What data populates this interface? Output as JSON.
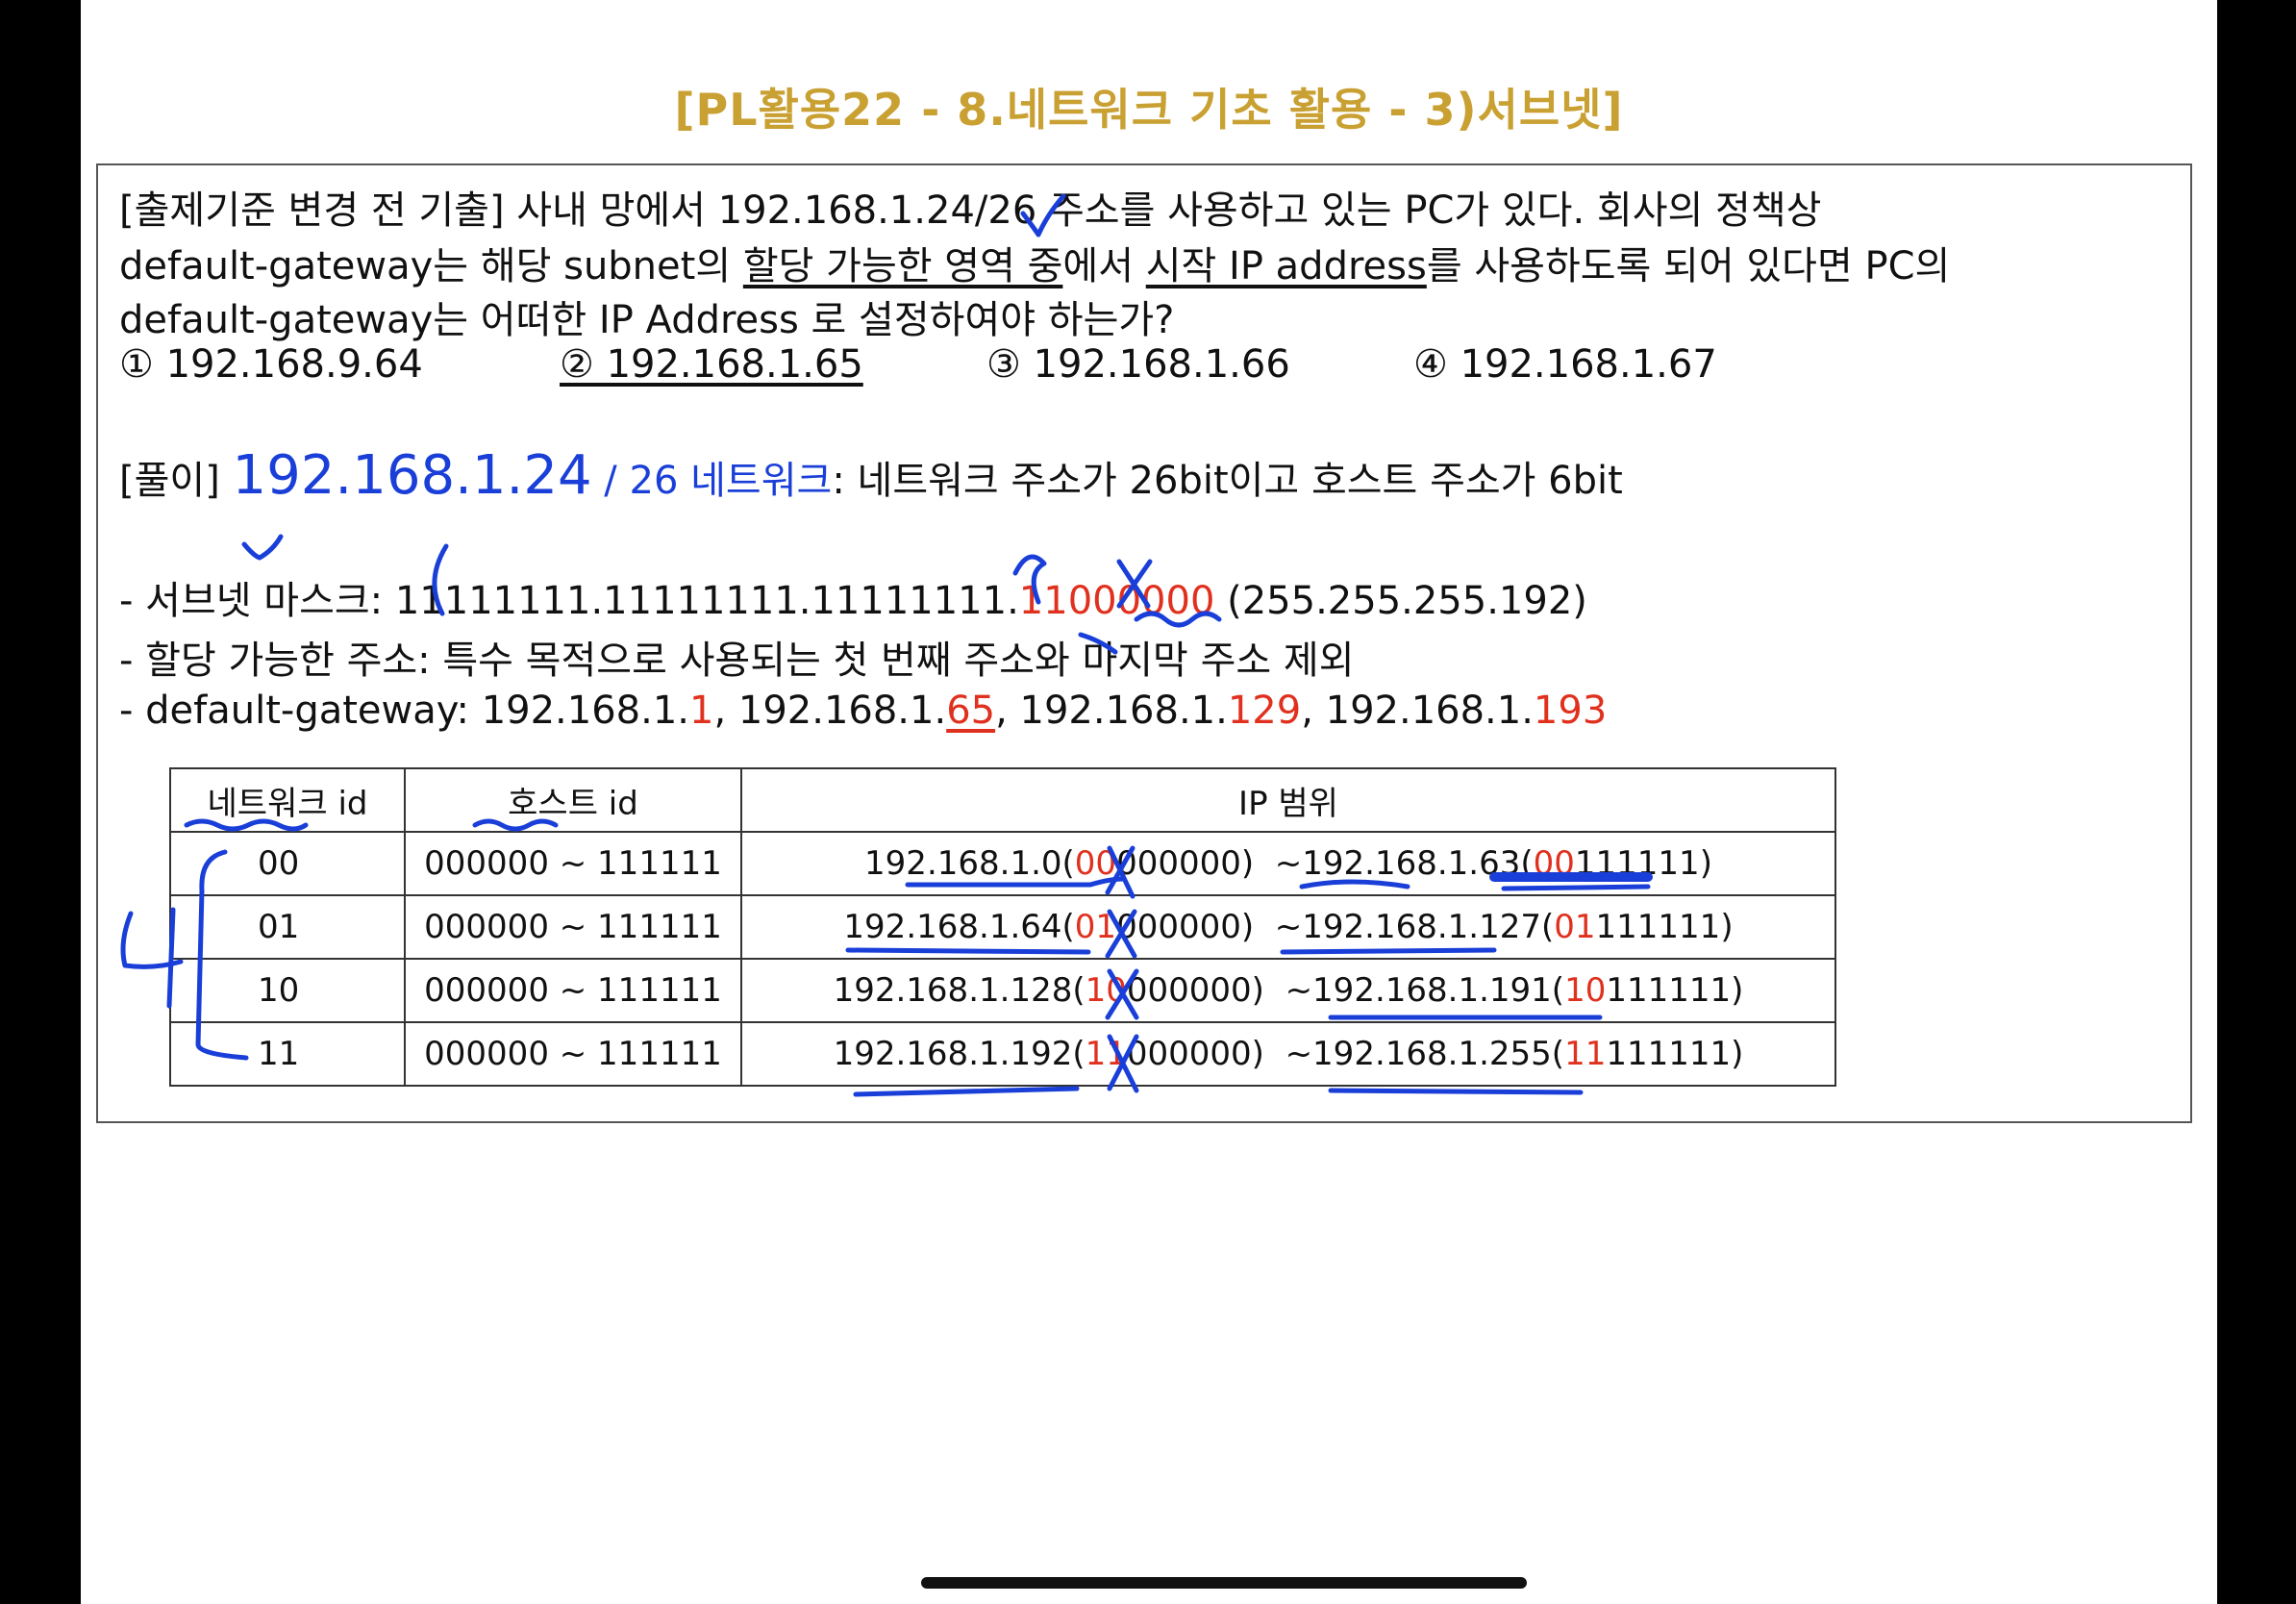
{
  "title": "[PL활용22 - 8.네트워크 기초 활용 - 3)서브넷]",
  "question": {
    "line1": "[출제기준 변경 전 기출] 사내 망에서 192.168.1.24/26 주소를 사용하고 있는 PC가 있다. 회사의 정책상",
    "line2_a": "default-gateway는 해당 subnet의 ",
    "line2_u1": "할당 가능한 영역 중",
    "line2_b": "에서 ",
    "line2_u2": "시작 IP address",
    "line2_c": "를 사용하도록 되어 있다면 PC의",
    "line3": "default-gateway는 어떠한 IP Address 로 설정하여야 하는가?",
    "options": [
      "① 192.168.9.64",
      "② 192.168.1.65",
      "③ 192.168.1.66",
      "④ 192.168.1.67"
    ]
  },
  "solution": {
    "label": "[풀이] ",
    "ip": "192.168.1.24",
    "slash": " / ",
    "prefix": "26 네트워크",
    "desc": ": 네트워크 주소가 26bit이고 호스트 주소가 6bit",
    "mask_label": "- 서브넷 마스크: ",
    "mask_black": "11111111.11111111.11111111.",
    "mask_red": "11",
    "mask_zero": "000000",
    "mask_dec": " (255.255.255.192)",
    "alloc": "- 할당 가능한 주소: 특수 목적으로 사용되는 첫 번째 주소와 마지막 주소 제외",
    "gw_label": "- default-gateway: ",
    "gw_prefix": "192.168.1.",
    "gw_values": [
      "1",
      "65",
      "129",
      "193"
    ],
    "gw_sep": ", "
  },
  "table": {
    "headers": [
      "네트워크 id",
      "호스트 id",
      "IP 범위"
    ],
    "rows": [
      {
        "net": "00",
        "host": "000000 ~ 111111",
        "start_ip": "192.168.1.0",
        "start_red": "00",
        "start_rest": "000000",
        "end_ip": "~192.168.1.63",
        "end_red": "00",
        "end_rest": "111111"
      },
      {
        "net": "01",
        "host": "000000 ~ 111111",
        "start_ip": "192.168.1.64",
        "start_red": "01",
        "start_rest": "000000",
        "end_ip": "~192.168.1.127",
        "end_red": "01",
        "end_rest": "111111"
      },
      {
        "net": "10",
        "host": "000000 ~ 111111",
        "start_ip": "192.168.1.128",
        "start_red": "10",
        "start_rest": "000000",
        "end_ip": "~192.168.1.191",
        "end_red": "10",
        "end_rest": "111111"
      },
      {
        "net": "11",
        "host": "000000 ~ 111111",
        "start_ip": "192.168.1.192",
        "start_red": "11",
        "start_rest": "000000",
        "end_ip": "~192.168.1.255",
        "end_red": "11",
        "end_rest": "111111"
      }
    ]
  },
  "handwritten_note": "4"
}
